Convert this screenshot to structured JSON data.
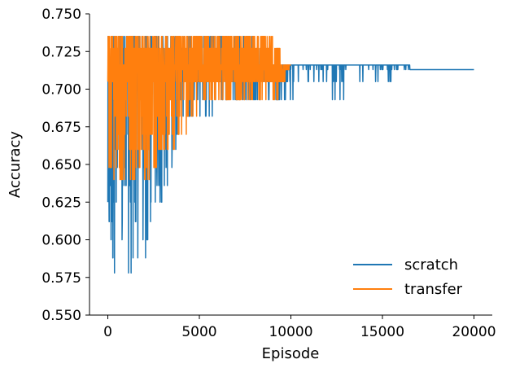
{
  "chart_data": {
    "type": "line",
    "title": "",
    "xlabel": "Episode",
    "ylabel": "Accuracy",
    "xlim": [
      -1000,
      21000
    ],
    "ylim": [
      0.55,
      0.75
    ],
    "xticks": [
      0,
      5000,
      10000,
      15000,
      20000
    ],
    "xtick_labels": [
      "0",
      "5000",
      "10000",
      "15000",
      "20000"
    ],
    "yticks": [
      0.55,
      0.575,
      0.6,
      0.625,
      0.65,
      0.675,
      0.7,
      0.725,
      0.75
    ],
    "ytick_labels": [
      "0.550",
      "0.575",
      "0.600",
      "0.625",
      "0.650",
      "0.675",
      "0.700",
      "0.725",
      "0.750"
    ],
    "grid": false,
    "legend_position": "bottom-right",
    "series": [
      {
        "name": "scratch",
        "color": "#1f77b4",
        "x_range": [
          0,
          20000
        ],
        "levels": [
          0.568,
          0.578,
          0.588,
          0.6,
          0.612,
          0.625,
          0.636,
          0.648,
          0.66,
          0.67,
          0.682,
          0.693,
          0.705,
          0.713,
          0.716,
          0.727,
          0.735
        ],
        "envelope": [
          {
            "x": 0,
            "min": 0.568,
            "max": 0.735
          },
          {
            "x": 2000,
            "min": 0.578,
            "max": 0.735
          },
          {
            "x": 4000,
            "min": 0.67,
            "max": 0.735
          },
          {
            "x": 6000,
            "min": 0.682,
            "max": 0.735
          },
          {
            "x": 8000,
            "min": 0.693,
            "max": 0.735
          },
          {
            "x": 10000,
            "min": 0.693,
            "max": 0.716
          },
          {
            "x": 12000,
            "min": 0.682,
            "max": 0.716
          },
          {
            "x": 14000,
            "min": 0.693,
            "max": 0.716
          },
          {
            "x": 16500,
            "min": 0.713,
            "max": 0.716
          },
          {
            "x": 20000,
            "min": 0.713,
            "max": 0.713
          }
        ],
        "final_value": 0.713
      },
      {
        "name": "transfer",
        "color": "#ff7f0e",
        "x_range": [
          0,
          10000
        ],
        "levels": [
          0.64,
          0.648,
          0.66,
          0.67,
          0.682,
          0.693,
          0.705,
          0.713,
          0.716,
          0.727,
          0.735
        ],
        "envelope": [
          {
            "x": 0,
            "min": 0.64,
            "max": 0.735
          },
          {
            "x": 2500,
            "min": 0.64,
            "max": 0.735
          },
          {
            "x": 5000,
            "min": 0.682,
            "max": 0.735
          },
          {
            "x": 7500,
            "min": 0.693,
            "max": 0.735
          },
          {
            "x": 9000,
            "min": 0.682,
            "max": 0.735
          },
          {
            "x": 10000,
            "min": 0.716,
            "max": 0.716
          }
        ],
        "final_value": 0.716
      }
    ]
  }
}
